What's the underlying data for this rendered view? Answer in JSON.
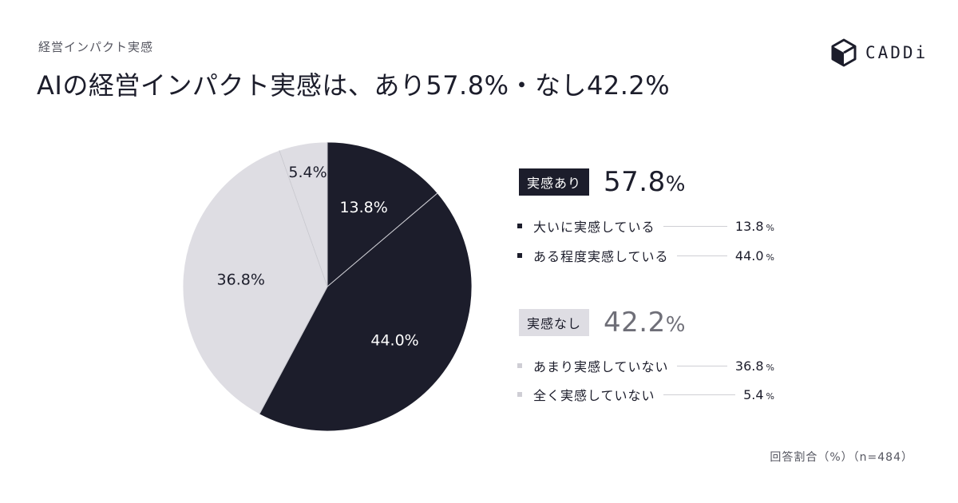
{
  "header": {
    "eyebrow": "経営インパクト実感",
    "title": "AIの経営インパクト実感は、あり57.8%・なし42.2%"
  },
  "brand": {
    "name": "CADDi",
    "icon": "cube-logo-icon"
  },
  "colors": {
    "dark": "#1c1d2b",
    "light": "#dedde3",
    "separator": "#c8c8cf"
  },
  "chart_data": {
    "type": "pie",
    "unit": "%",
    "slices": [
      {
        "label": "大いに実感している",
        "value": 13.8,
        "display": "13.8%",
        "color": "#1c1d2b",
        "text_color": "#ffffff"
      },
      {
        "label": "ある程度実感している",
        "value": 44.0,
        "display": "44.0%",
        "color": "#1c1d2b",
        "text_color": "#ffffff"
      },
      {
        "label": "あまり実感していない",
        "value": 36.8,
        "display": "36.8%",
        "color": "#dedde3",
        "text_color": "#1c1d2b"
      },
      {
        "label": "全く実感していない",
        "value": 5.4,
        "display": "5.4%",
        "color": "#dedde3",
        "text_color": "#1c1d2b"
      }
    ]
  },
  "legend": {
    "groups": [
      {
        "tag": "実感あり",
        "total": "57.8",
        "pct": "%",
        "items": [
          {
            "label": "大いに実感している",
            "value": "13.8",
            "pct": "%"
          },
          {
            "label": "ある程度実感している",
            "value": "44.0",
            "pct": "%"
          }
        ]
      },
      {
        "tag": "実感なし",
        "total": "42.2",
        "pct": "%",
        "items": [
          {
            "label": "あまり実感していない",
            "value": "36.8",
            "pct": "%"
          },
          {
            "label": "全く実感していない",
            "value": "5.4",
            "pct": "%"
          }
        ]
      }
    ]
  },
  "footnote": "回答割合（%）（n=484）"
}
